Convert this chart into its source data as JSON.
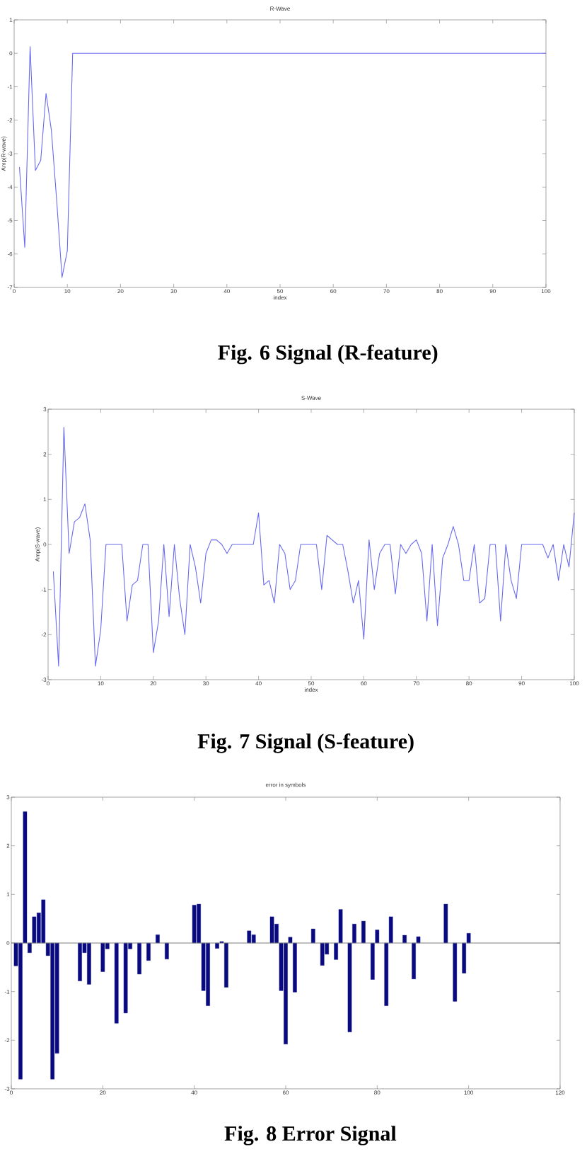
{
  "chart_data": [
    {
      "type": "line",
      "title": "R-Wave",
      "xlabel": "index",
      "ylabel": "Amp(R-wave)",
      "color": "#6a6af0",
      "x": [
        1,
        2,
        3,
        4,
        5,
        6,
        7,
        8,
        9,
        10,
        11,
        100
      ],
      "values": [
        -3.4,
        -5.8,
        0.2,
        -3.5,
        -3.2,
        -1.2,
        -2.3,
        -4.4,
        -6.7,
        -5.9,
        0,
        0
      ],
      "xlim": [
        0,
        100
      ],
      "xticks": [
        0,
        10,
        20,
        30,
        40,
        50,
        60,
        70,
        80,
        90,
        100
      ],
      "ylim": [
        -7,
        1
      ],
      "yticks": [
        -7,
        -6,
        -5,
        -4,
        -3,
        -2,
        -1,
        0,
        1
      ],
      "annotations": [
        "Fig. 6 Signal (R-feature)"
      ]
    },
    {
      "type": "line",
      "title": "S-Wave",
      "xlabel": "index",
      "ylabel": "Amp(S-wave)",
      "color": "#6a6af0",
      "x": [
        1,
        2,
        3,
        4,
        5,
        6,
        7,
        8,
        9,
        10,
        11,
        12,
        13,
        14,
        15,
        16,
        17,
        18,
        19,
        20,
        21,
        22,
        23,
        24,
        25,
        26,
        27,
        28,
        29,
        30,
        31,
        32,
        33,
        34,
        35,
        36,
        37,
        38,
        39,
        40,
        41,
        42,
        43,
        44,
        45,
        46,
        47,
        48,
        49,
        50,
        51,
        52,
        53,
        54,
        55,
        56,
        57,
        58,
        59,
        60,
        61,
        62,
        63,
        64,
        65,
        66,
        67,
        68,
        69,
        70,
        71,
        72,
        73,
        74,
        75,
        76,
        77,
        78,
        79,
        80,
        81,
        82,
        83,
        84,
        85,
        86,
        87,
        88,
        89,
        90,
        91,
        92,
        93,
        94,
        95,
        96,
        97,
        98,
        99,
        100
      ],
      "values": [
        -0.6,
        -2.7,
        2.6,
        -0.2,
        0.5,
        0.6,
        0.9,
        0.1,
        -2.7,
        -1.9,
        0,
        0,
        0,
        0,
        -1.7,
        -0.9,
        -0.8,
        0,
        0,
        -2.4,
        -1.7,
        0,
        -1.6,
        0,
        -1.2,
        -2.0,
        0,
        -0.5,
        -1.3,
        -0.2,
        0.1,
        0.1,
        0,
        -0.2,
        0,
        0,
        0,
        0,
        0,
        0.7,
        -0.9,
        -0.8,
        -1.3,
        0,
        -0.2,
        -1.0,
        -0.8,
        0,
        0,
        0,
        0,
        -1.0,
        0.2,
        0.1,
        0,
        0,
        -0.6,
        -1.3,
        -0.8,
        -2.1,
        0.1,
        -1.0,
        -0.2,
        0,
        0,
        -1.1,
        0,
        -0.2,
        0,
        0.1,
        -0.2,
        -1.7,
        0,
        -1.8,
        -0.3,
        0,
        0.4,
        0,
        -0.8,
        -0.8,
        0,
        -1.3,
        -1.2,
        0,
        0,
        -1.7,
        0,
        -0.8,
        -1.2,
        0,
        0,
        0,
        0,
        0,
        -0.3,
        0,
        -0.8,
        0,
        -0.5,
        0.7
      ],
      "xlim": [
        0,
        100
      ],
      "xticks": [
        0,
        10,
        20,
        30,
        40,
        50,
        60,
        70,
        80,
        90,
        100
      ],
      "ylim": [
        -3,
        3
      ],
      "yticks": [
        -3,
        -2,
        -1,
        0,
        1,
        2,
        3
      ],
      "annotations": [
        "Fig. 7 Signal (S-feature)"
      ]
    },
    {
      "type": "bar",
      "title": "error in symbols",
      "color": "#0a0a80",
      "x": [
        1,
        2,
        3,
        4,
        5,
        6,
        7,
        8,
        9,
        10,
        15,
        16,
        17,
        20,
        21,
        23,
        25,
        26,
        28,
        30,
        32,
        34,
        40,
        41,
        42,
        43,
        45,
        46,
        47,
        52,
        53,
        57,
        58,
        59,
        60,
        61,
        62,
        66,
        68,
        69,
        71,
        72,
        74,
        75,
        77,
        79,
        80,
        82,
        83,
        86,
        88,
        89,
        95,
        97,
        99,
        100
      ],
      "values": [
        -0.47,
        -2.8,
        2.7,
        -0.2,
        0.54,
        0.62,
        0.89,
        -0.26,
        -2.8,
        -2.27,
        -0.78,
        -0.2,
        -0.85,
        -0.59,
        -0.12,
        -1.65,
        -1.44,
        -0.12,
        -0.64,
        -0.36,
        0.17,
        -0.33,
        0.78,
        0.8,
        -0.98,
        -1.29,
        -0.11,
        0.03,
        -0.91,
        0.25,
        0.17,
        0.54,
        0.39,
        -0.98,
        -2.08,
        0.12,
        -1.01,
        0.29,
        -0.46,
        -0.23,
        -0.34,
        0.69,
        -1.83,
        0.39,
        0.45,
        -0.75,
        0.27,
        -1.29,
        0.54,
        0.16,
        -0.74,
        0.13,
        0.8,
        -1.2,
        -0.62,
        0.2
      ],
      "xlim": [
        0,
        120
      ],
      "xticks": [
        0,
        20,
        40,
        60,
        80,
        100,
        120
      ],
      "ylim": [
        -3,
        3
      ],
      "yticks": [
        -3,
        -2,
        -1,
        0,
        1,
        2,
        3
      ],
      "ref_lines": [
        {
          "axis": "y",
          "value": 0,
          "color": "#7f7f7f"
        }
      ],
      "annotations": [
        "Fig. 8 Error Signal"
      ]
    }
  ]
}
